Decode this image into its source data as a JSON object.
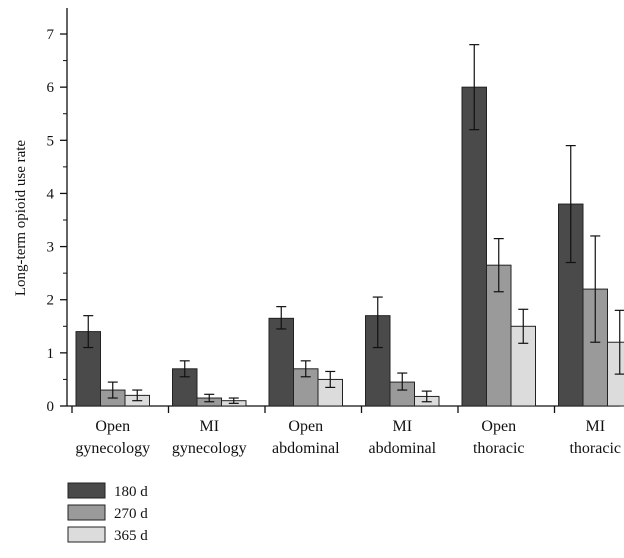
{
  "chart_data": {
    "type": "bar",
    "ylabel": "Long-term opioid use rate",
    "xlabel": "",
    "ylim": [
      0,
      7.4
    ],
    "yticks": [
      0,
      1,
      2,
      3,
      4,
      5,
      6,
      7
    ],
    "categories": [
      [
        "Open",
        "gynecology"
      ],
      [
        "MI",
        "gynecology"
      ],
      [
        "Open",
        "abdominal"
      ],
      [
        "MI",
        "abdominal"
      ],
      [
        "Open",
        "thoracic"
      ],
      [
        "MI",
        "thoracic"
      ]
    ],
    "series": [
      {
        "name": "180 d",
        "color": "#4a4a4a",
        "values": [
          1.4,
          0.7,
          1.65,
          1.7,
          6.0,
          3.8
        ],
        "err_low": [
          1.1,
          0.55,
          1.45,
          1.1,
          5.2,
          2.7
        ],
        "err_high": [
          1.7,
          0.85,
          1.87,
          2.05,
          6.8,
          4.9
        ]
      },
      {
        "name": "270 d",
        "color": "#9a9a9a",
        "values": [
          0.3,
          0.15,
          0.7,
          0.45,
          2.65,
          2.2
        ],
        "err_low": [
          0.15,
          0.08,
          0.55,
          0.3,
          2.15,
          1.2
        ],
        "err_high": [
          0.45,
          0.22,
          0.85,
          0.62,
          3.15,
          3.2
        ]
      },
      {
        "name": "365 d",
        "color": "#dcdcdc",
        "values": [
          0.2,
          0.1,
          0.5,
          0.18,
          1.5,
          1.2
        ],
        "err_low": [
          0.1,
          0.05,
          0.35,
          0.08,
          1.18,
          0.6
        ],
        "err_high": [
          0.3,
          0.15,
          0.65,
          0.28,
          1.82,
          1.8
        ]
      }
    ],
    "grid": false,
    "legend": "bottom-left"
  }
}
